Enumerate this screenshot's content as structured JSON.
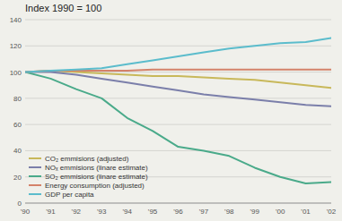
{
  "chart_data": {
    "type": "line",
    "title": "Index 1990 = 100",
    "x": [
      1990,
      1991,
      1992,
      1993,
      1994,
      1995,
      1996,
      1997,
      1998,
      1999,
      2000,
      2001,
      2002
    ],
    "xlim": [
      1990,
      2002
    ],
    "xticks": [
      {
        "value": 1990,
        "label": "'90"
      },
      {
        "value": 1991,
        "label": "'91"
      },
      {
        "value": 1992,
        "label": "'92"
      },
      {
        "value": 1993,
        "label": "'93"
      },
      {
        "value": 1994,
        "label": "'94"
      },
      {
        "value": 1995,
        "label": "'95"
      },
      {
        "value": 1996,
        "label": "'96"
      },
      {
        "value": 1997,
        "label": "'97"
      },
      {
        "value": 1998,
        "label": "'98"
      },
      {
        "value": 1999,
        "label": "'99"
      },
      {
        "value": 2000,
        "label": "'00"
      },
      {
        "value": 2001,
        "label": "'01"
      },
      {
        "value": 2002,
        "label": "'02"
      }
    ],
    "ylim": [
      0,
      140
    ],
    "yticks": [
      0,
      20,
      40,
      60,
      80,
      100,
      120,
      140
    ],
    "grid": true,
    "legend": "lower left",
    "series": [
      {
        "name": "CO₂ emmisions (adjusted)",
        "color": "#c8b85a",
        "values": [
          100,
          101,
          100,
          99,
          98,
          97,
          97,
          96,
          95,
          94,
          92,
          90,
          88
        ]
      },
      {
        "name": "NOₓ emmisions (linare estimate)",
        "color": "#7b7faa",
        "values": [
          100,
          100,
          98,
          95,
          92,
          89,
          86,
          83,
          81,
          79,
          77,
          75,
          74
        ]
      },
      {
        "name": "SO₂ emmisions (linare estimate)",
        "color": "#4aaa8a",
        "values": [
          100,
          95,
          87,
          80,
          65,
          55,
          43,
          40,
          36,
          27,
          20,
          15,
          16
        ]
      },
      {
        "name": "Energy consumption (adjusted)",
        "color": "#d4826a",
        "values": [
          100,
          101,
          101,
          101,
          101,
          102,
          102,
          102,
          102,
          102,
          102,
          102,
          102
        ]
      },
      {
        "name": "GDP per capita",
        "color": "#5bbccc",
        "values": [
          100,
          101,
          102,
          103,
          106,
          109,
          112,
          115,
          118,
          120,
          122,
          123,
          126
        ]
      }
    ]
  }
}
